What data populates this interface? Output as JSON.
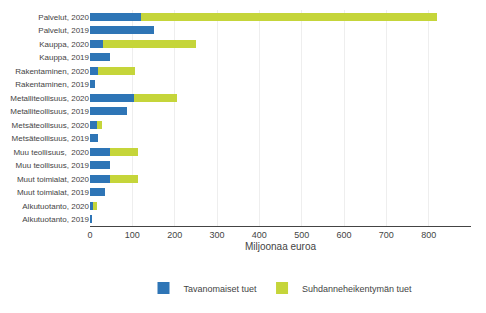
{
  "chart_data": {
    "type": "bar",
    "orientation": "horizontal",
    "stacked": true,
    "categories": [
      "Palvelut, 2020",
      "Palvelut, 2019",
      "Kauppa, 2020",
      "Kauppa, 2019",
      "Rakentaminen, 2020",
      "Rakentaminen, 2019",
      "Metalliteollisuus, 2020",
      "Metalliteollisuus, 2019",
      "Metsäteollisuus, 2020",
      "Metsäteollisuus, 2019",
      "Muu teollisuus,  2020",
      "Muu teollisuus, 2019",
      "Muut toimialat, 2020",
      "Muut toimialat, 2019",
      "Alkutuotanto, 2020",
      "Alkutuotanto, 2019"
    ],
    "series": [
      {
        "name": "Tavanomaiset tuet",
        "color": "#2e75b6",
        "values": [
          120,
          150,
          30,
          48,
          18,
          12,
          105,
          88,
          16,
          18,
          48,
          48,
          48,
          35,
          7,
          5
        ]
      },
      {
        "name": "Suhdanneheikentymän tuet",
        "color": "#c5d53a",
        "values": [
          700,
          0,
          220,
          0,
          88,
          0,
          100,
          0,
          12,
          0,
          65,
          0,
          65,
          0,
          10,
          0
        ]
      }
    ],
    "xlabel": "Miljoonaa euroa",
    "xlim": [
      0,
      900
    ],
    "xticks": [
      0,
      100,
      200,
      300,
      400,
      500,
      600,
      700,
      800
    ],
    "grid": true,
    "legend": "bottom"
  }
}
